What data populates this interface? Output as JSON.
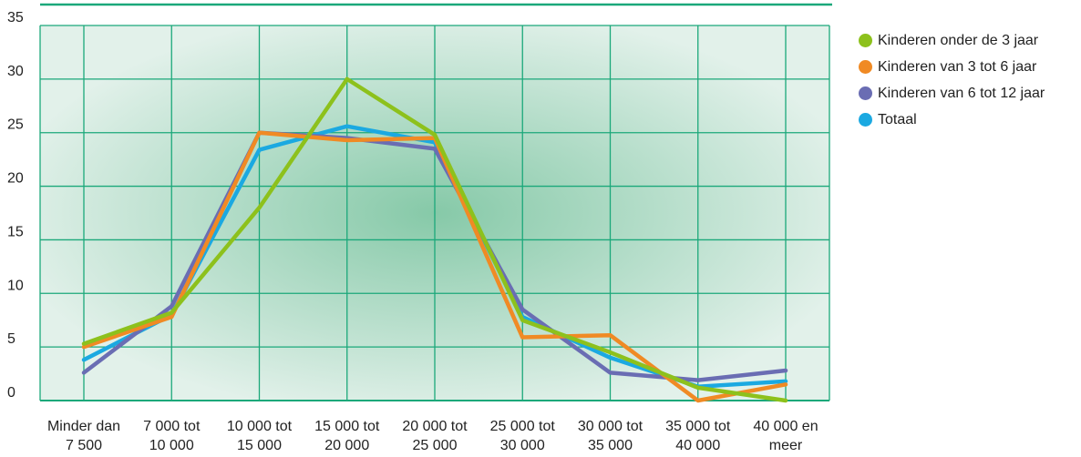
{
  "chart_data": {
    "type": "line",
    "categories": [
      [
        "Minder dan",
        "7 500"
      ],
      [
        "7 000 tot",
        "10 000"
      ],
      [
        "10 000 tot",
        "15 000"
      ],
      [
        "15 000 tot",
        "20 000"
      ],
      [
        "20 000 tot",
        "25 000"
      ],
      [
        "25 000 tot",
        "30 000"
      ],
      [
        "30 000 tot",
        "35 000"
      ],
      [
        "35 000 tot",
        "40 000"
      ],
      [
        "40 000 en",
        "meer"
      ]
    ],
    "ylim": [
      0,
      35
    ],
    "yticks": [
      0,
      5,
      10,
      15,
      20,
      25,
      30,
      35
    ],
    "grid": true,
    "legend_position": "right",
    "series": [
      {
        "name": "Kinderen onder de 3 jaar",
        "color": "#8dc11c",
        "values": [
          5.3,
          8.2,
          18.0,
          30.0,
          24.8,
          7.5,
          4.5,
          1.2,
          0.0
        ]
      },
      {
        "name": "Kinderen van 3 tot 6 jaar",
        "color": "#f08a24",
        "values": [
          5.0,
          7.8,
          25.0,
          24.3,
          24.5,
          5.9,
          6.1,
          0.0,
          1.5
        ]
      },
      {
        "name": "Kinderen van 6 tot 12 jaar",
        "color": "#6a6db3",
        "values": [
          2.6,
          8.8,
          25.0,
          24.5,
          23.5,
          8.5,
          2.6,
          1.9,
          2.8
        ]
      },
      {
        "name": "Totaal",
        "color": "#1ba9e1",
        "values": [
          3.8,
          8.0,
          23.4,
          25.6,
          24.1,
          7.8,
          4.0,
          1.3,
          1.8
        ]
      }
    ]
  }
}
